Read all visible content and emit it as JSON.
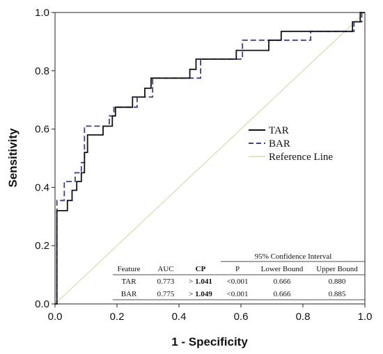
{
  "chart_data": {
    "type": "line",
    "title": "",
    "xlabel": "1 - Specificity",
    "ylabel": "Sensitivity",
    "xlim": [
      0,
      1
    ],
    "ylim": [
      0,
      1
    ],
    "x_ticks": [
      "0.0",
      "0.2",
      "0.4",
      "0.6",
      "0.8",
      "1.0"
    ],
    "y_ticks": [
      "0.0",
      "0.2",
      "0.4",
      "0.6",
      "0.8",
      "1.0"
    ],
    "grid": false,
    "legend_position": "center-right",
    "series": [
      {
        "name": "TAR",
        "color": "#111111",
        "style": "solid",
        "points": [
          [
            0,
            0
          ],
          [
            0.006,
            0
          ],
          [
            0.006,
            0.32
          ],
          [
            0.04,
            0.32
          ],
          [
            0.04,
            0.355
          ],
          [
            0.055,
            0.355
          ],
          [
            0.055,
            0.39
          ],
          [
            0.07,
            0.39
          ],
          [
            0.07,
            0.42
          ],
          [
            0.085,
            0.42
          ],
          [
            0.085,
            0.45
          ],
          [
            0.095,
            0.45
          ],
          [
            0.095,
            0.52
          ],
          [
            0.105,
            0.52
          ],
          [
            0.105,
            0.58
          ],
          [
            0.155,
            0.58
          ],
          [
            0.155,
            0.61
          ],
          [
            0.185,
            0.61
          ],
          [
            0.185,
            0.645
          ],
          [
            0.195,
            0.645
          ],
          [
            0.195,
            0.675
          ],
          [
            0.25,
            0.675
          ],
          [
            0.25,
            0.71
          ],
          [
            0.29,
            0.71
          ],
          [
            0.29,
            0.74
          ],
          [
            0.31,
            0.74
          ],
          [
            0.31,
            0.775
          ],
          [
            0.435,
            0.775
          ],
          [
            0.435,
            0.805
          ],
          [
            0.455,
            0.805
          ],
          [
            0.455,
            0.84
          ],
          [
            0.585,
            0.84
          ],
          [
            0.585,
            0.87
          ],
          [
            0.615,
            0.87
          ],
          [
            0.615,
            0.87
          ],
          [
            0.69,
            0.87
          ],
          [
            0.69,
            0.905
          ],
          [
            0.73,
            0.905
          ],
          [
            0.73,
            0.935
          ],
          [
            0.96,
            0.935
          ],
          [
            0.96,
            0.968
          ],
          [
            0.985,
            0.968
          ],
          [
            0.985,
            1.0
          ],
          [
            1.0,
            1.0
          ]
        ]
      },
      {
        "name": "BAR",
        "color": "#3b3f8f",
        "style": "dashed",
        "points": [
          [
            0,
            0
          ],
          [
            0.006,
            0
          ],
          [
            0.006,
            0.355
          ],
          [
            0.03,
            0.355
          ],
          [
            0.03,
            0.42
          ],
          [
            0.065,
            0.42
          ],
          [
            0.065,
            0.45
          ],
          [
            0.085,
            0.45
          ],
          [
            0.085,
            0.485
          ],
          [
            0.095,
            0.485
          ],
          [
            0.095,
            0.61
          ],
          [
            0.175,
            0.61
          ],
          [
            0.175,
            0.645
          ],
          [
            0.19,
            0.645
          ],
          [
            0.19,
            0.675
          ],
          [
            0.265,
            0.675
          ],
          [
            0.265,
            0.71
          ],
          [
            0.315,
            0.71
          ],
          [
            0.315,
            0.775
          ],
          [
            0.47,
            0.775
          ],
          [
            0.47,
            0.84
          ],
          [
            0.605,
            0.84
          ],
          [
            0.605,
            0.905
          ],
          [
            0.825,
            0.905
          ],
          [
            0.825,
            0.935
          ],
          [
            0.965,
            0.935
          ],
          [
            0.965,
            0.968
          ],
          [
            0.99,
            0.968
          ],
          [
            0.99,
            1.0
          ],
          [
            1.0,
            1.0
          ]
        ]
      },
      {
        "name": "Reference Line",
        "color": "#d6dcaa",
        "style": "solid",
        "points": [
          [
            0,
            0
          ],
          [
            1,
            1
          ]
        ]
      }
    ]
  },
  "table": {
    "group_header": "95% Confidence Interval",
    "headers": [
      "Feature",
      "AUC",
      "CP",
      "P",
      "Lower Bound",
      "Upper Bound"
    ],
    "rows": [
      {
        "feature": "TAR",
        "auc": "0.773",
        "cp_prefix": "> ",
        "cp_value": "1.041",
        "p": "<0.001",
        "lower": "0.666",
        "upper": "0.880"
      },
      {
        "feature": "BAR",
        "auc": "0.775",
        "cp_prefix": "> ",
        "cp_value": "1.049",
        "p": "<0.001",
        "lower": "0.666",
        "upper": "0.885"
      }
    ]
  }
}
